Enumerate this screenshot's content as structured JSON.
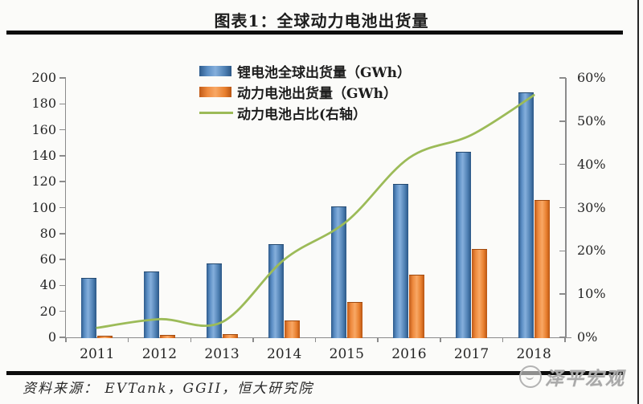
{
  "header": {
    "title": "图表1：全球动力电池出货量"
  },
  "chart_data": {
    "type": "bar+line",
    "categories": [
      "2011",
      "2012",
      "2013",
      "2014",
      "2015",
      "2016",
      "2017",
      "2018"
    ],
    "series": [
      {
        "name": "锂电池全球出货量（GWh）",
        "type": "bar",
        "axis": "left",
        "color": "#4f81bd",
        "values": [
          46,
          51,
          57,
          72,
          101,
          118,
          143,
          189
        ]
      },
      {
        "name": "动力电池出货量（GWh）",
        "type": "bar",
        "axis": "left",
        "color": "#ed7d31",
        "values": [
          1,
          2,
          2.5,
          13,
          27,
          48.5,
          68,
          106
        ]
      },
      {
        "name": "动力电池占比(右轴）",
        "type": "line",
        "axis": "right",
        "color": "#9cbb58",
        "values": [
          2.2,
          4.2,
          3.5,
          18,
          26.8,
          41.5,
          46.8,
          56
        ]
      }
    ],
    "left_axis": {
      "min": 0,
      "max": 200,
      "tick_labels": [
        "0",
        "20",
        "40",
        "60",
        "80",
        "100",
        "120",
        "140",
        "160",
        "180",
        "200"
      ]
    },
    "right_axis": {
      "min": 0,
      "max": 60,
      "tick_labels": [
        "0%",
        "10%",
        "20%",
        "30%",
        "40%",
        "50%",
        "60%"
      ]
    },
    "legend_position": "top-center",
    "grid": false
  },
  "footer": {
    "source": "资料来源：  EVTank，GGII，恒大研究院",
    "watermark": "泽平宏观"
  },
  "colors": {
    "bar_blue": "#4f81bd",
    "bar_orange": "#ed7d31",
    "line_green": "#9cbb58",
    "rule_black": "#0d0d0d"
  }
}
